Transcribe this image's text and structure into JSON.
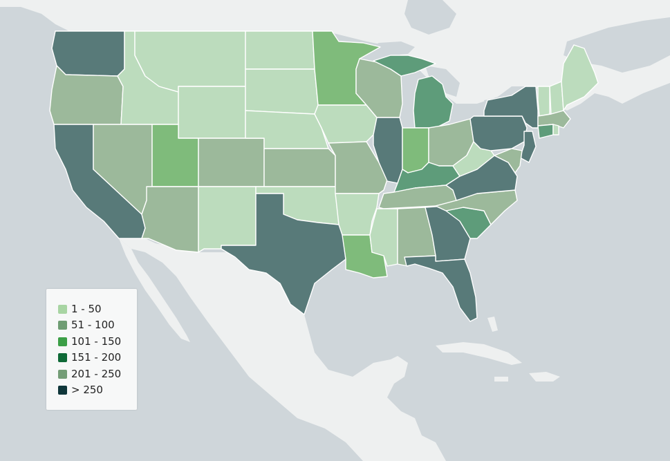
{
  "legend": {
    "entries": [
      {
        "label": "1 - 50",
        "color": "#a8d5a3"
      },
      {
        "label": "51 - 100",
        "color": "#6f9d73"
      },
      {
        "label": "101 - 150",
        "color": "#3c9f47"
      },
      {
        "label": "151 - 200",
        "color": "#0f6a37"
      },
      {
        "label": "201 - 250",
        "color": "#749d77"
      },
      {
        "label": "> 250",
        "color": "#0f363a"
      }
    ]
  },
  "colors": {
    "water": "#cfd6da",
    "land": "#eef0f0",
    "state_border": "#ffffff",
    "class_1_50": "#bcdcbd",
    "class_51_100": "#9cb99b",
    "class_101_150": "#7fbb7b",
    "class_151_200": "#5e9c7a",
    "class_gt_250": "#587a79"
  }
}
